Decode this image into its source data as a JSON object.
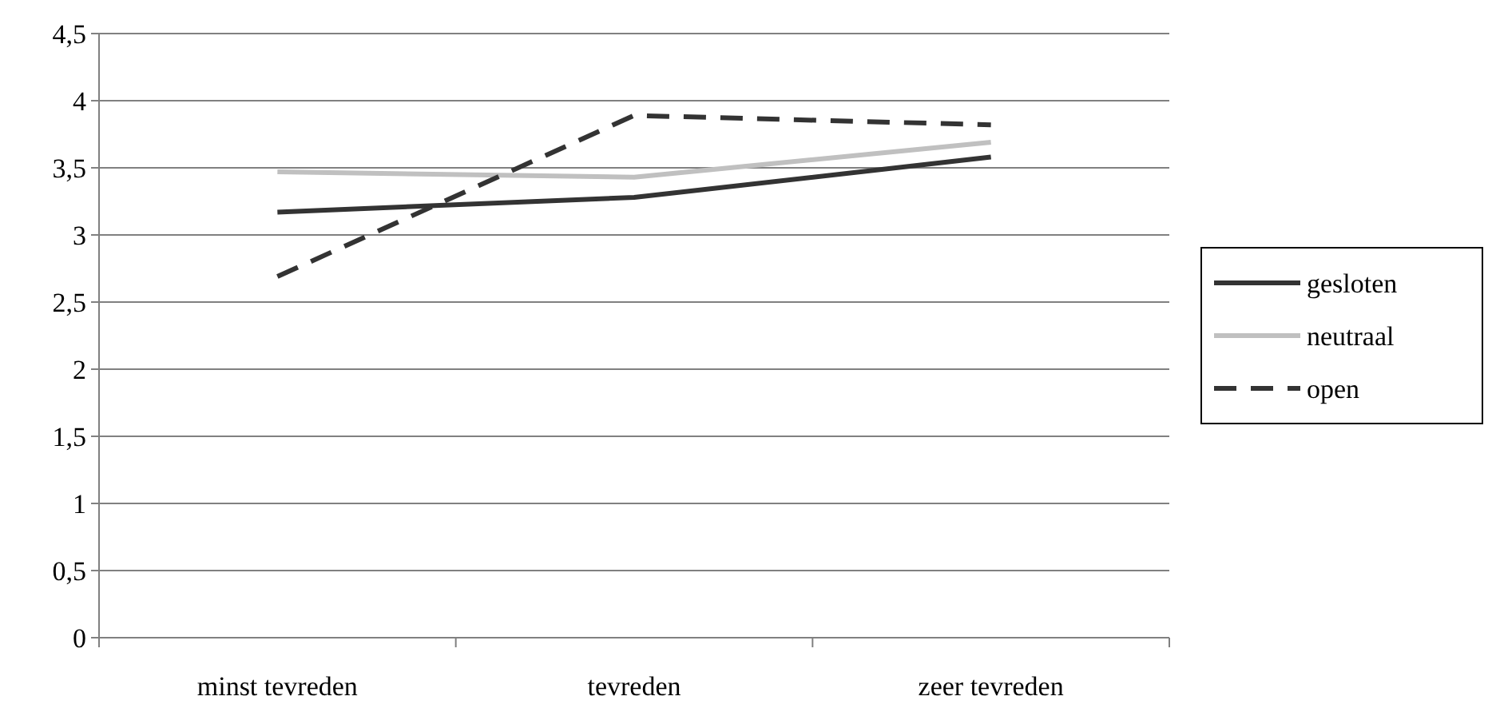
{
  "chart_data": {
    "type": "line",
    "categories": [
      "minst tevreden",
      "tevreden",
      "zeer tevreden"
    ],
    "series": [
      {
        "name": "gesloten",
        "color": "#333333",
        "values": [
          3.17,
          3.28,
          3.58
        ],
        "line_style": "solid"
      },
      {
        "name": "neutraal",
        "color": "#c0c0c0",
        "values": [
          3.47,
          3.43,
          3.69
        ],
        "line_style": "solid"
      },
      {
        "name": "open",
        "color": "#333333",
        "values": [
          2.69,
          3.89,
          3.82
        ],
        "line_style": "dashed"
      }
    ],
    "ylim": [
      0,
      4.5
    ],
    "yticks": [
      {
        "value": 0,
        "label": "0"
      },
      {
        "value": 0.5,
        "label": "0,5"
      },
      {
        "value": 1,
        "label": "1"
      },
      {
        "value": 1.5,
        "label": "1,5"
      },
      {
        "value": 2,
        "label": "2"
      },
      {
        "value": 2.5,
        "label": "2,5"
      },
      {
        "value": 3,
        "label": "3"
      },
      {
        "value": 3.5,
        "label": "3,5"
      },
      {
        "value": 4,
        "label": "4"
      },
      {
        "value": 4.5,
        "label": "4,5"
      }
    ],
    "grid": "y",
    "legend": "right",
    "marker": "none"
  }
}
